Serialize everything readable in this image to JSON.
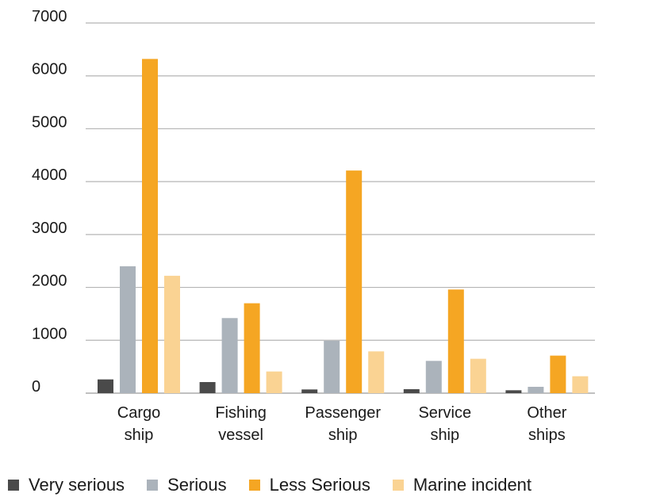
{
  "chart_data": {
    "type": "bar",
    "categories": [
      [
        "Cargo",
        "ship"
      ],
      [
        "Fishing",
        "vessel"
      ],
      [
        "Passenger",
        "ship"
      ],
      [
        "Service",
        "ship"
      ],
      [
        "Other",
        "ships"
      ]
    ],
    "series": [
      {
        "name": "Very serious",
        "color": "#4a4a4a",
        "values": [
          260,
          210,
          70,
          75,
          55
        ]
      },
      {
        "name": "Serious",
        "color": "#abb3bb",
        "values": [
          2400,
          1420,
          990,
          610,
          120
        ]
      },
      {
        "name": "Less Serious",
        "color": "#f5a623",
        "values": [
          6320,
          1700,
          4210,
          1960,
          710
        ]
      },
      {
        "name": "Marine incident",
        "color": "#fad393",
        "values": [
          2220,
          410,
          790,
          650,
          320
        ]
      }
    ],
    "yticks": [
      "0",
      "1000",
      "2000",
      "3000",
      "4000",
      "5000",
      "6000",
      "7000"
    ],
    "ylim": [
      0,
      7000
    ],
    "grid": true,
    "legend_position": "bottom"
  }
}
